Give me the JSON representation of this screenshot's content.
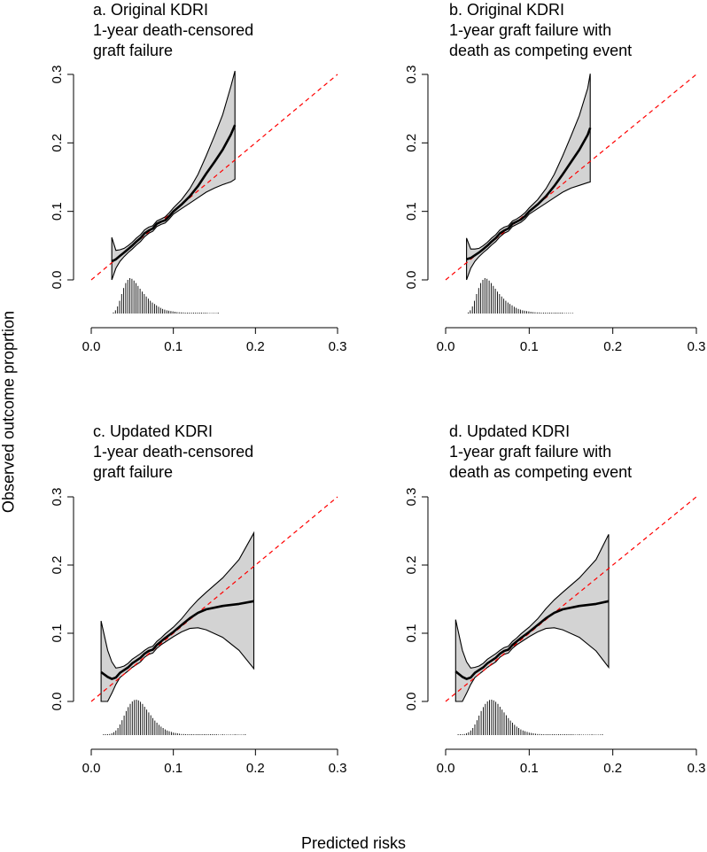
{
  "figure": {
    "ylabel": "Observed outcome proprtion",
    "xlabel": "Predicted risks",
    "reference_line_color": "#ff0000",
    "band_fill_color": "#d3d3d3",
    "curve_color": "#000000"
  },
  "chart_data": [
    {
      "type": "line",
      "title_lines": [
        "a. Original KDRI",
        "1-year death-censored",
        "graft failure"
      ],
      "xlim": [
        0,
        0.3
      ],
      "ylim": [
        0,
        0.3
      ],
      "xticks": [
        "0.0",
        "0.1",
        "0.2",
        "0.3"
      ],
      "yticks": [
        "0.0",
        "0.1",
        "0.2",
        "0.3"
      ],
      "series": [
        {
          "name": "calibration curve",
          "x": [
            0.025,
            0.03,
            0.035,
            0.04,
            0.045,
            0.05,
            0.055,
            0.06,
            0.065,
            0.07,
            0.075,
            0.08,
            0.085,
            0.09,
            0.095,
            0.1,
            0.11,
            0.12,
            0.13,
            0.14,
            0.15,
            0.16,
            0.17,
            0.175
          ],
          "y": [
            0.027,
            0.03,
            0.035,
            0.04,
            0.045,
            0.05,
            0.056,
            0.061,
            0.068,
            0.072,
            0.075,
            0.082,
            0.085,
            0.087,
            0.093,
            0.1,
            0.11,
            0.122,
            0.137,
            0.155,
            0.172,
            0.19,
            0.212,
            0.226
          ]
        },
        {
          "name": "lower bound",
          "y": [
            0.0,
            0.017,
            0.027,
            0.034,
            0.04,
            0.045,
            0.051,
            0.056,
            0.063,
            0.068,
            0.071,
            0.078,
            0.081,
            0.083,
            0.089,
            0.096,
            0.104,
            0.112,
            0.12,
            0.128,
            0.134,
            0.139,
            0.143,
            0.147
          ]
        },
        {
          "name": "upper bound",
          "y": [
            0.062,
            0.043,
            0.044,
            0.046,
            0.05,
            0.055,
            0.061,
            0.066,
            0.073,
            0.077,
            0.079,
            0.086,
            0.089,
            0.092,
            0.098,
            0.105,
            0.117,
            0.133,
            0.154,
            0.181,
            0.21,
            0.241,
            0.282,
            0.305
          ]
        },
        {
          "name": "reference",
          "x": [
            0,
            0.3
          ],
          "y": [
            0,
            0.3
          ]
        }
      ],
      "histogram": {
        "x_start": 0.027,
        "x_step": 0.0025,
        "values": [
          0.03,
          0.09,
          0.2,
          0.36,
          0.55,
          0.72,
          0.86,
          0.95,
          1.0,
          0.98,
          0.93,
          0.86,
          0.78,
          0.7,
          0.62,
          0.55,
          0.48,
          0.42,
          0.36,
          0.31,
          0.27,
          0.23,
          0.19,
          0.16,
          0.13,
          0.11,
          0.09,
          0.08,
          0.07,
          0.06,
          0.05,
          0.04,
          0.035,
          0.03,
          0.03,
          0.025,
          0.02,
          0.02,
          0.02,
          0.015,
          0.015,
          0.01,
          0.01,
          0.01,
          0.01,
          0.01,
          0.0,
          0.0,
          0.0,
          0.0,
          0.0,
          0.01
        ]
      }
    },
    {
      "type": "line",
      "title_lines": [
        "b. Original KDRI",
        "1-year graft failure with",
        "death as competing event"
      ],
      "xlim": [
        0,
        0.3
      ],
      "ylim": [
        0,
        0.3
      ],
      "xticks": [
        "0.0",
        "0.1",
        "0.2",
        "0.3"
      ],
      "yticks": [
        "0.0",
        "0.1",
        "0.2",
        "0.3"
      ],
      "series": [
        {
          "name": "calibration curve",
          "x": [
            0.025,
            0.03,
            0.035,
            0.04,
            0.045,
            0.05,
            0.055,
            0.06,
            0.065,
            0.07,
            0.075,
            0.08,
            0.085,
            0.09,
            0.095,
            0.1,
            0.11,
            0.12,
            0.13,
            0.14,
            0.15,
            0.16,
            0.17,
            0.173
          ],
          "y": [
            0.03,
            0.032,
            0.036,
            0.04,
            0.045,
            0.05,
            0.056,
            0.061,
            0.068,
            0.072,
            0.075,
            0.082,
            0.085,
            0.088,
            0.093,
            0.1,
            0.11,
            0.122,
            0.137,
            0.154,
            0.172,
            0.19,
            0.212,
            0.222
          ]
        },
        {
          "name": "lower bound",
          "y": [
            0.0,
            0.017,
            0.027,
            0.034,
            0.04,
            0.045,
            0.051,
            0.056,
            0.063,
            0.068,
            0.071,
            0.078,
            0.081,
            0.084,
            0.089,
            0.096,
            0.104,
            0.112,
            0.12,
            0.128,
            0.134,
            0.138,
            0.142,
            0.143
          ]
        },
        {
          "name": "upper bound",
          "y": [
            0.061,
            0.045,
            0.045,
            0.046,
            0.05,
            0.055,
            0.061,
            0.066,
            0.073,
            0.077,
            0.079,
            0.086,
            0.089,
            0.093,
            0.098,
            0.105,
            0.117,
            0.133,
            0.154,
            0.181,
            0.21,
            0.24,
            0.28,
            0.301
          ]
        },
        {
          "name": "reference",
          "x": [
            0,
            0.3
          ],
          "y": [
            0,
            0.3
          ]
        }
      ],
      "histogram": {
        "x_start": 0.027,
        "x_step": 0.0025,
        "values": [
          0.03,
          0.09,
          0.2,
          0.36,
          0.55,
          0.72,
          0.86,
          0.95,
          1.0,
          0.98,
          0.93,
          0.86,
          0.78,
          0.7,
          0.62,
          0.55,
          0.48,
          0.42,
          0.36,
          0.31,
          0.27,
          0.23,
          0.19,
          0.16,
          0.13,
          0.11,
          0.09,
          0.08,
          0.07,
          0.06,
          0.05,
          0.04,
          0.035,
          0.03,
          0.03,
          0.025,
          0.02,
          0.02,
          0.02,
          0.015,
          0.015,
          0.01,
          0.01,
          0.01,
          0.01,
          0.01,
          0.0,
          0.0,
          0.0,
          0.0,
          0.0
        ]
      }
    },
    {
      "type": "line",
      "title_lines": [
        "c. Updated KDRI",
        "1-year death-censored",
        "graft failure"
      ],
      "xlim": [
        0,
        0.3
      ],
      "ylim": [
        0,
        0.3
      ],
      "xticks": [
        "0.0",
        "0.1",
        "0.2",
        "0.3"
      ],
      "yticks": [
        "0.0",
        "0.1",
        "0.2",
        "0.3"
      ],
      "series": [
        {
          "name": "calibration curve",
          "x": [
            0.012,
            0.02,
            0.025,
            0.03,
            0.035,
            0.04,
            0.045,
            0.05,
            0.055,
            0.06,
            0.065,
            0.07,
            0.075,
            0.08,
            0.085,
            0.09,
            0.1,
            0.11,
            0.12,
            0.13,
            0.14,
            0.16,
            0.18,
            0.198
          ],
          "y": [
            0.043,
            0.036,
            0.033,
            0.035,
            0.042,
            0.046,
            0.05,
            0.056,
            0.06,
            0.064,
            0.07,
            0.074,
            0.076,
            0.083,
            0.088,
            0.093,
            0.102,
            0.112,
            0.122,
            0.13,
            0.135,
            0.14,
            0.143,
            0.147
          ]
        },
        {
          "name": "lower bound",
          "y": [
            0.0,
            0.0,
            0.012,
            0.025,
            0.035,
            0.04,
            0.045,
            0.05,
            0.054,
            0.058,
            0.065,
            0.069,
            0.071,
            0.078,
            0.083,
            0.087,
            0.095,
            0.102,
            0.107,
            0.108,
            0.105,
            0.094,
            0.075,
            0.048
          ]
        },
        {
          "name": "upper bound",
          "y": [
            0.118,
            0.075,
            0.058,
            0.049,
            0.05,
            0.052,
            0.056,
            0.062,
            0.066,
            0.07,
            0.075,
            0.079,
            0.081,
            0.088,
            0.093,
            0.099,
            0.109,
            0.121,
            0.136,
            0.149,
            0.16,
            0.181,
            0.208,
            0.247
          ]
        },
        {
          "name": "reference",
          "x": [
            0,
            0.3
          ],
          "y": [
            0,
            0.3
          ]
        }
      ],
      "histogram": {
        "x_start": 0.015,
        "x_step": 0.0025,
        "values": [
          0.01,
          0.01,
          0.02,
          0.03,
          0.05,
          0.08,
          0.13,
          0.2,
          0.3,
          0.42,
          0.55,
          0.68,
          0.79,
          0.88,
          0.95,
          0.99,
          1.0,
          0.98,
          0.94,
          0.88,
          0.8,
          0.72,
          0.64,
          0.56,
          0.48,
          0.41,
          0.35,
          0.29,
          0.24,
          0.2,
          0.16,
          0.13,
          0.11,
          0.09,
          0.07,
          0.06,
          0.05,
          0.04,
          0.03,
          0.03,
          0.02,
          0.02,
          0.02,
          0.015,
          0.015,
          0.01,
          0.01,
          0.01,
          0.01,
          0.01,
          0.01,
          0.01,
          0.01,
          0.01,
          0.01,
          0.01,
          0.0,
          0.0,
          0.01,
          0.0,
          0.0,
          0.0,
          0.0,
          0.0,
          0.01,
          0.0,
          0.0,
          0.0,
          0.0,
          0.01
        ]
      }
    },
    {
      "type": "line",
      "title_lines": [
        "d. Updated KDRI",
        "1-year graft failure with",
        "death as competing event"
      ],
      "xlim": [
        0,
        0.3
      ],
      "ylim": [
        0,
        0.3
      ],
      "xticks": [
        "0.0",
        "0.1",
        "0.2",
        "0.3"
      ],
      "yticks": [
        "0.0",
        "0.1",
        "0.2",
        "0.3"
      ],
      "series": [
        {
          "name": "calibration curve",
          "x": [
            0.012,
            0.02,
            0.025,
            0.03,
            0.035,
            0.04,
            0.045,
            0.05,
            0.055,
            0.06,
            0.065,
            0.07,
            0.075,
            0.08,
            0.085,
            0.09,
            0.1,
            0.11,
            0.12,
            0.13,
            0.14,
            0.16,
            0.18,
            0.195
          ],
          "y": [
            0.044,
            0.036,
            0.033,
            0.035,
            0.042,
            0.046,
            0.05,
            0.056,
            0.06,
            0.064,
            0.07,
            0.074,
            0.076,
            0.083,
            0.088,
            0.093,
            0.102,
            0.112,
            0.122,
            0.13,
            0.135,
            0.14,
            0.143,
            0.147
          ]
        },
        {
          "name": "lower bound",
          "y": [
            0.0,
            0.0,
            0.012,
            0.025,
            0.035,
            0.04,
            0.045,
            0.05,
            0.054,
            0.058,
            0.065,
            0.069,
            0.071,
            0.078,
            0.083,
            0.087,
            0.095,
            0.102,
            0.107,
            0.108,
            0.105,
            0.094,
            0.074,
            0.05
          ]
        },
        {
          "name": "upper bound",
          "y": [
            0.12,
            0.075,
            0.058,
            0.049,
            0.05,
            0.052,
            0.056,
            0.062,
            0.066,
            0.07,
            0.075,
            0.079,
            0.081,
            0.088,
            0.093,
            0.099,
            0.109,
            0.121,
            0.136,
            0.149,
            0.16,
            0.181,
            0.208,
            0.245
          ]
        },
        {
          "name": "reference",
          "x": [
            0,
            0.3
          ],
          "y": [
            0,
            0.3
          ]
        }
      ],
      "histogram": {
        "x_start": 0.015,
        "x_step": 0.0025,
        "values": [
          0.01,
          0.01,
          0.02,
          0.03,
          0.05,
          0.08,
          0.13,
          0.2,
          0.3,
          0.42,
          0.55,
          0.68,
          0.79,
          0.88,
          0.95,
          0.99,
          1.0,
          0.98,
          0.94,
          0.88,
          0.8,
          0.72,
          0.64,
          0.56,
          0.48,
          0.41,
          0.35,
          0.29,
          0.24,
          0.2,
          0.16,
          0.13,
          0.11,
          0.09,
          0.07,
          0.06,
          0.05,
          0.04,
          0.03,
          0.03,
          0.02,
          0.02,
          0.02,
          0.015,
          0.015,
          0.01,
          0.01,
          0.01,
          0.01,
          0.01,
          0.01,
          0.01,
          0.01,
          0.01,
          0.01,
          0.01,
          0.0,
          0.0,
          0.01,
          0.0,
          0.0,
          0.0,
          0.0,
          0.0,
          0.01,
          0.0,
          0.0,
          0.0,
          0.0,
          0.01
        ]
      }
    }
  ]
}
